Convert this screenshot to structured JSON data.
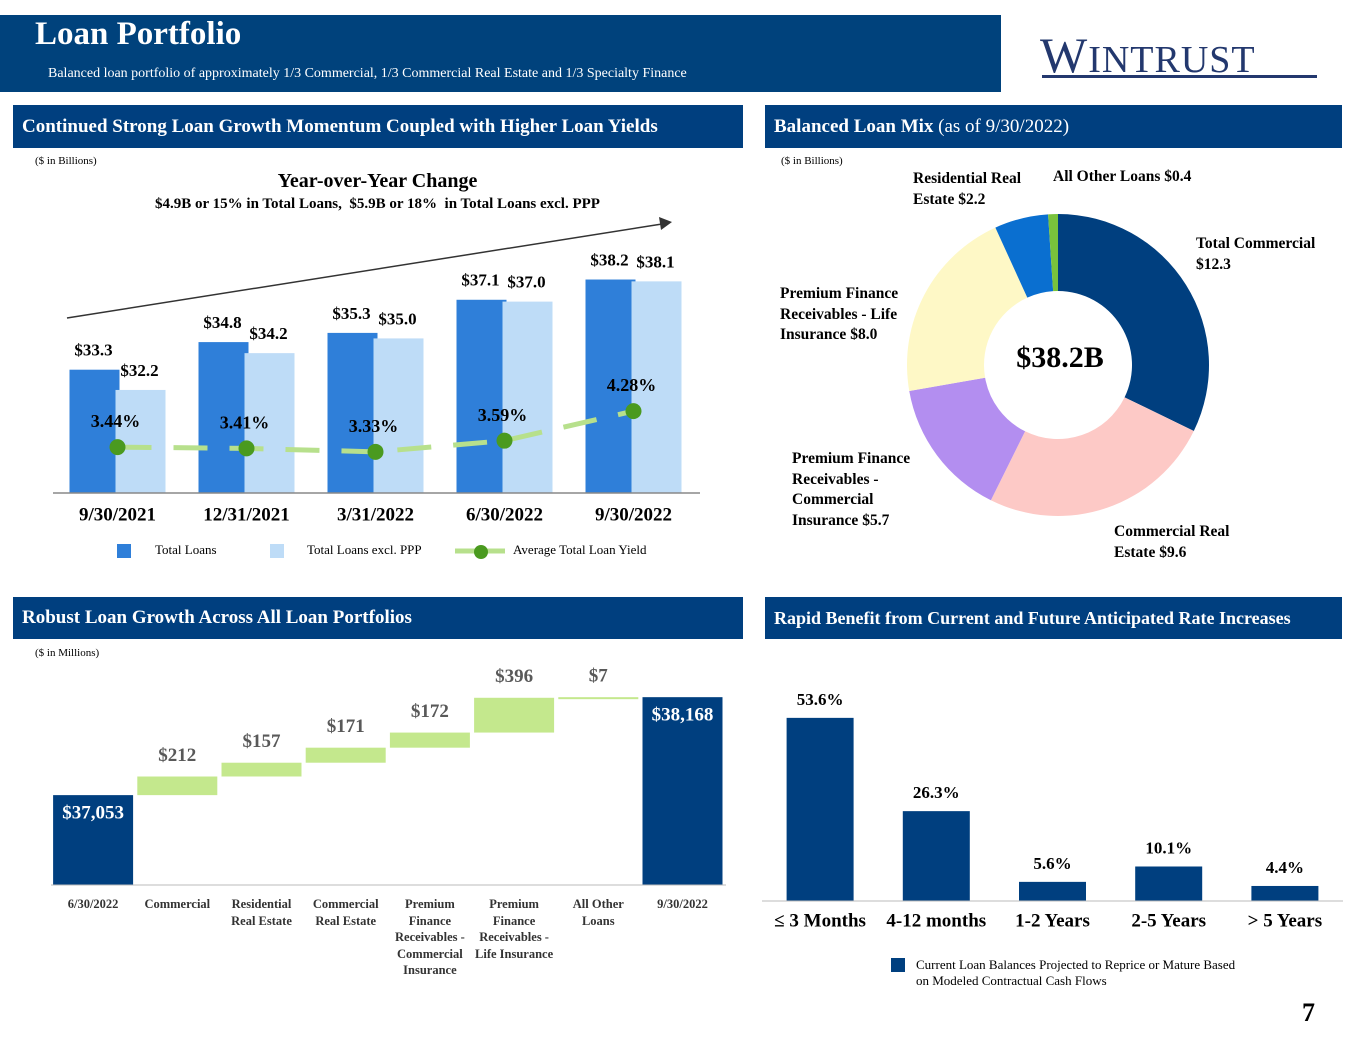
{
  "header": {
    "title": "Loan Portfolio",
    "subtitle": "Balanced loan portfolio of approximately 1/3 Commercial, 1/3 Commercial Real Estate and 1/3 Specialty Finance",
    "logo": "WINTRUST"
  },
  "page_number": "7",
  "chart_data": [
    {
      "type": "bar",
      "panel_title": "Continued Strong Loan Growth Momentum Coupled with Higher Loan Yields",
      "unit_note": "($ in Billions)",
      "title": "Year-over-Year Change",
      "subtitle": "$4.9B or 15% in Total Loans,  $5.9B or 18%  in Total Loans excl. PPP",
      "categories": [
        "9/30/2021",
        "12/31/2021",
        "3/31/2022",
        "6/30/2022",
        "9/30/2022"
      ],
      "series": [
        {
          "name": "Total Loans",
          "color": "#2f7fd9",
          "values": [
            33.3,
            34.8,
            35.3,
            37.1,
            38.2
          ],
          "value_labels": [
            "$33.3",
            "$34.8",
            "$35.3",
            "$37.1",
            "$38.2"
          ]
        },
        {
          "name": "Total Loans excl. PPP",
          "color": "#bedcf7",
          "values": [
            32.2,
            34.2,
            35.0,
            37.0,
            38.1
          ],
          "value_labels": [
            "$32.2",
            "$34.2",
            "$35.0",
            "$37.0",
            "$38.1"
          ]
        },
        {
          "name": "Average Total Loan Yield",
          "type": "line",
          "axis": "y2",
          "color": "#b7e08c",
          "marker_color": "#4a9a1f",
          "values": [
            3.44,
            3.41,
            3.33,
            3.59,
            4.28
          ],
          "value_labels": [
            "3.44%",
            "3.41%",
            "3.33%",
            "3.59%",
            "4.28%"
          ]
        }
      ],
      "ylim": [
        26.6,
        41
      ],
      "y2lim": [
        2.37,
        8.55
      ]
    },
    {
      "type": "pie",
      "donut": true,
      "panel_title": "Balanced Loan Mix",
      "panel_note": "(as of 9/30/2022)",
      "unit_note": "($ in Billions)",
      "center_label": "$38.2B",
      "categories": [
        "Total Commercial",
        "Commercial Real Estate",
        "Premium Finance Receivables - Commercial Insurance",
        "Premium Finance Receivables - Life Insurance",
        "Residential Real Estate",
        "All Other Loans"
      ],
      "values": [
        12.3,
        9.6,
        5.7,
        8.0,
        2.2,
        0.4
      ],
      "value_labels": [
        "$12.3",
        "$9.6",
        "$5.7",
        "$8.0",
        "$2.2",
        "$0.4"
      ],
      "colors": [
        "#003f7f",
        "#fdc9c6",
        "#b38ef0",
        "#fef8c6",
        "#0a6fd0",
        "#79c23c"
      ]
    },
    {
      "type": "waterfall",
      "panel_title": "Robust Loan Growth Across All Loan Portfolios",
      "unit_note": "($ in Millions)",
      "categories": [
        "6/30/2022",
        "Commercial",
        "Residential Real Estate",
        "Commercial Real Estate",
        "Premium Finance Receivables - Commercial Insurance",
        "Premium Finance Receivables - Life Insurance",
        "All Other Loans",
        "9/30/2022"
      ],
      "values": [
        37053,
        212,
        157,
        171,
        172,
        396,
        7,
        38168
      ],
      "value_labels": [
        "$37,053",
        "$212",
        "$157",
        "$171",
        "$172",
        "$396",
        "$7",
        "$38,168"
      ],
      "total_color": "#003f7f",
      "increase_color": "#c4e88d",
      "ylim": [
        36030,
        38500
      ]
    },
    {
      "type": "bar",
      "panel_title": "Rapid Benefit from Current and Future Anticipated Rate Increases",
      "categories": [
        "≤ 3 Months",
        "4-12 months",
        "1-2 Years",
        "2-5 Years",
        "> 5 Years"
      ],
      "series": [
        {
          "name": "Current Loan Balances Projected to Reprice or Mature Based on Modeled Contractual Cash Flows",
          "color": "#003f7f",
          "values": [
            53.6,
            26.3,
            5.6,
            10.1,
            4.4
          ],
          "value_labels": [
            "53.6%",
            "26.3%",
            "5.6%",
            "10.1%",
            "4.4%"
          ]
        }
      ],
      "ylim": [
        0,
        60
      ]
    }
  ]
}
